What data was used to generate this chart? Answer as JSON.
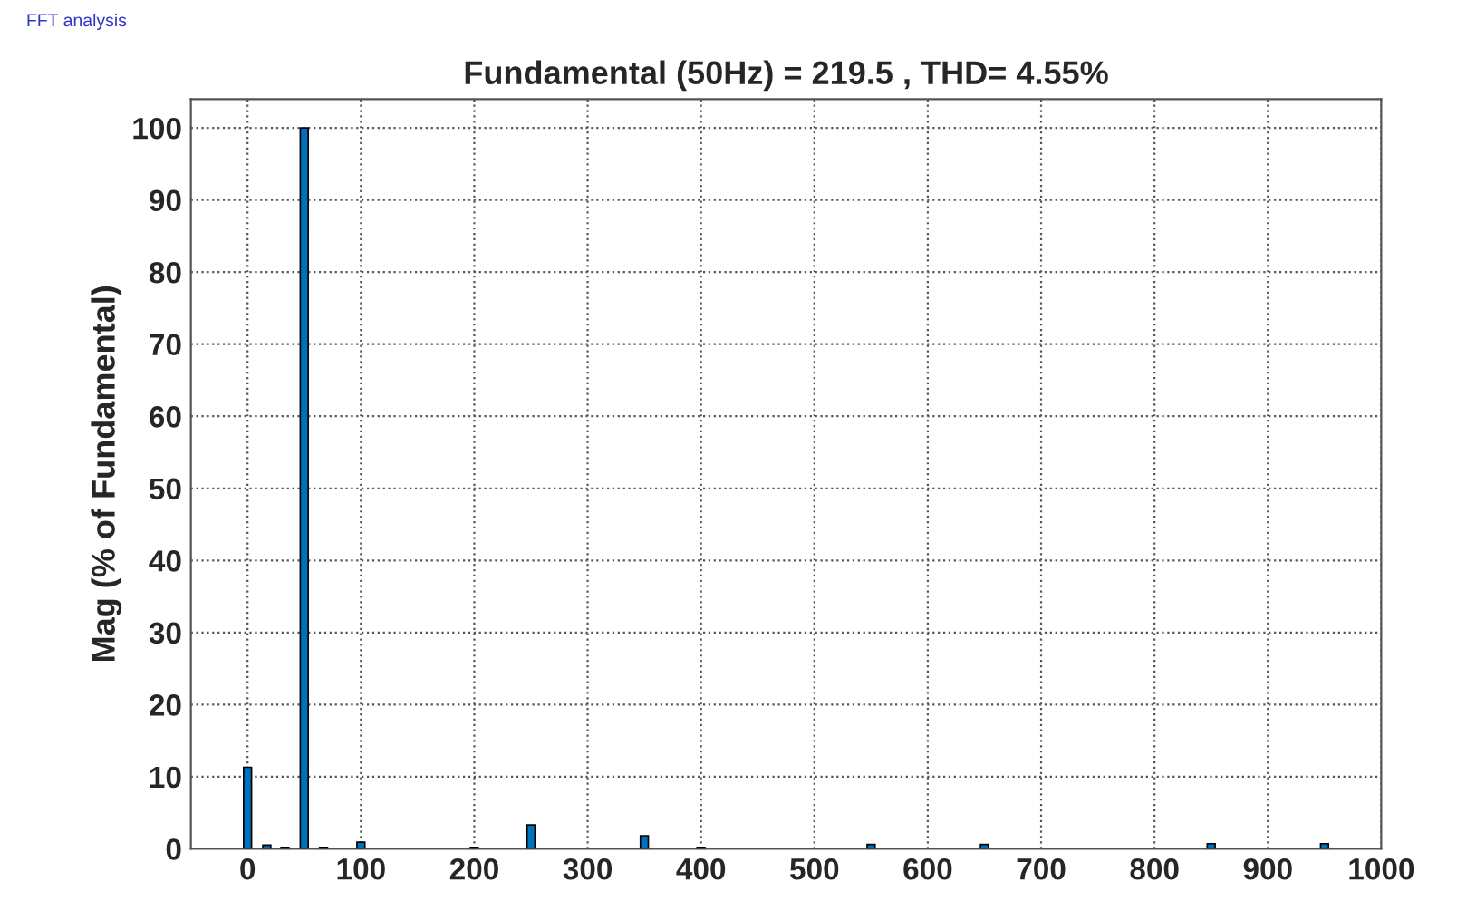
{
  "chart_data": {
    "type": "bar",
    "title": "Fundamental (50Hz) = 219.5 , THD= 4.55%",
    "ylabel": "Mag (% of Fundamental)",
    "annotations": [
      "FFT analysis"
    ],
    "x": [
      0,
      17,
      33,
      50,
      67,
      100,
      200,
      250,
      350,
      400,
      550,
      650,
      850,
      950
    ],
    "values": [
      11.3,
      0.5,
      0.2,
      100,
      0.2,
      0.9,
      0.2,
      3.3,
      1.8,
      0.2,
      0.6,
      0.6,
      0.7,
      0.7
    ],
    "color": "#0072bd",
    "xlim": [
      -50,
      1000
    ],
    "xticks": [
      0,
      100,
      200,
      300,
      400,
      500,
      600,
      700,
      800,
      900,
      1000
    ],
    "ylim": [
      0,
      104
    ],
    "yticks": [
      0,
      10,
      20,
      30,
      40,
      50,
      60,
      70,
      80,
      90,
      100
    ],
    "grid": true
  }
}
